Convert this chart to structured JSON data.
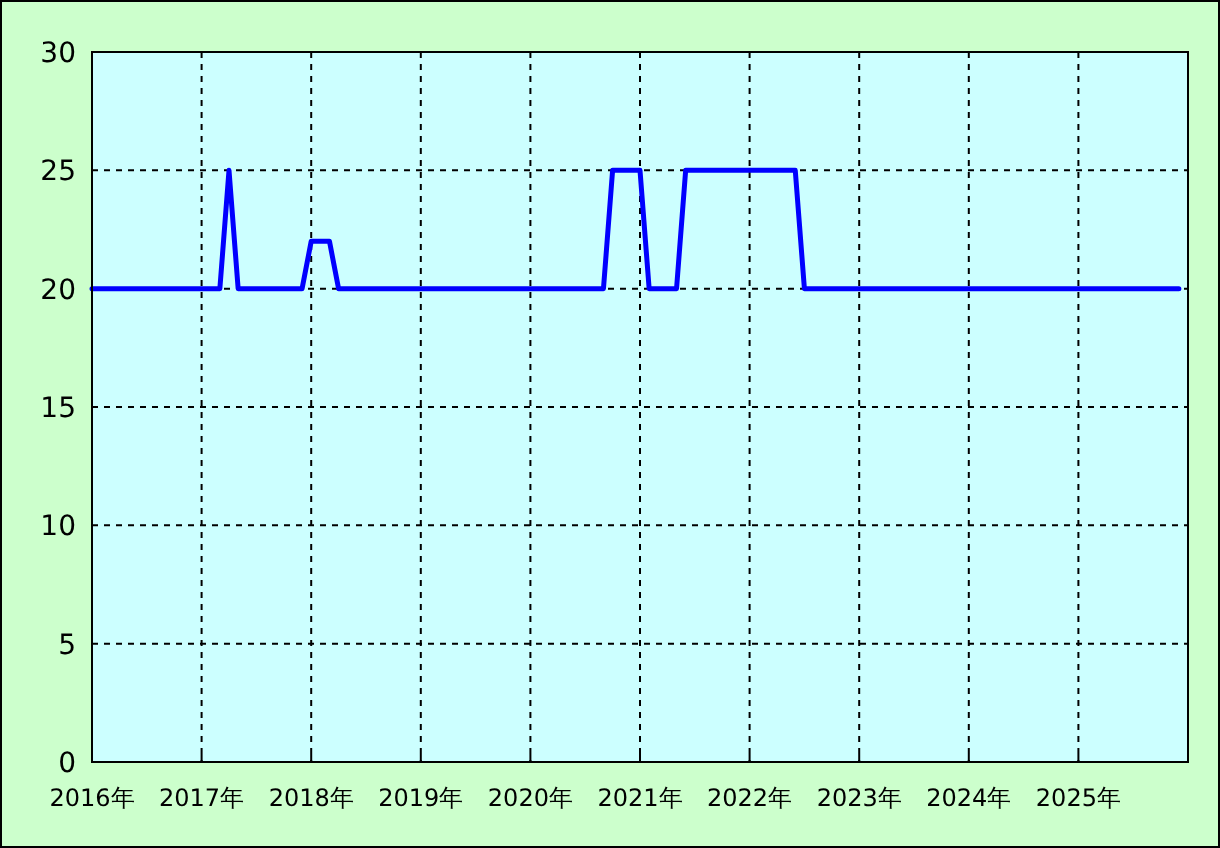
{
  "chart_data": {
    "type": "line",
    "x": [
      "2016-01",
      "2017-03",
      "2017-04",
      "2017-05",
      "2017-12",
      "2018-01",
      "2018-03",
      "2018-04",
      "2020-09",
      "2020-10",
      "2021-01",
      "2021-02",
      "2021-05",
      "2021-06",
      "2022-06",
      "2022-07",
      "2025-12"
    ],
    "series": [
      {
        "color": "#0000ff",
        "values": [
          20,
          20,
          25,
          20,
          20,
          22,
          22,
          20,
          20,
          25,
          25,
          20,
          20,
          25,
          25,
          20,
          20
        ]
      }
    ],
    "xlim": [
      "2016-01",
      "2026-01"
    ],
    "xticks": [
      {
        "value": "2016",
        "label": "2016年"
      },
      {
        "value": "2017",
        "label": "2017年"
      },
      {
        "value": "2018",
        "label": "2018年"
      },
      {
        "value": "2019",
        "label": "2019年"
      },
      {
        "value": "2020",
        "label": "2020年"
      },
      {
        "value": "2021",
        "label": "2021年"
      },
      {
        "value": "2022",
        "label": "2022年"
      },
      {
        "value": "2023",
        "label": "2023年"
      },
      {
        "value": "2024",
        "label": "2024年"
      },
      {
        "value": "2025",
        "label": "2025年"
      }
    ],
    "ylim": [
      0,
      30
    ],
    "yticks": [
      0,
      5,
      10,
      15,
      20,
      25,
      30
    ],
    "grid": true,
    "marker": "none",
    "line_style": "solid"
  }
}
